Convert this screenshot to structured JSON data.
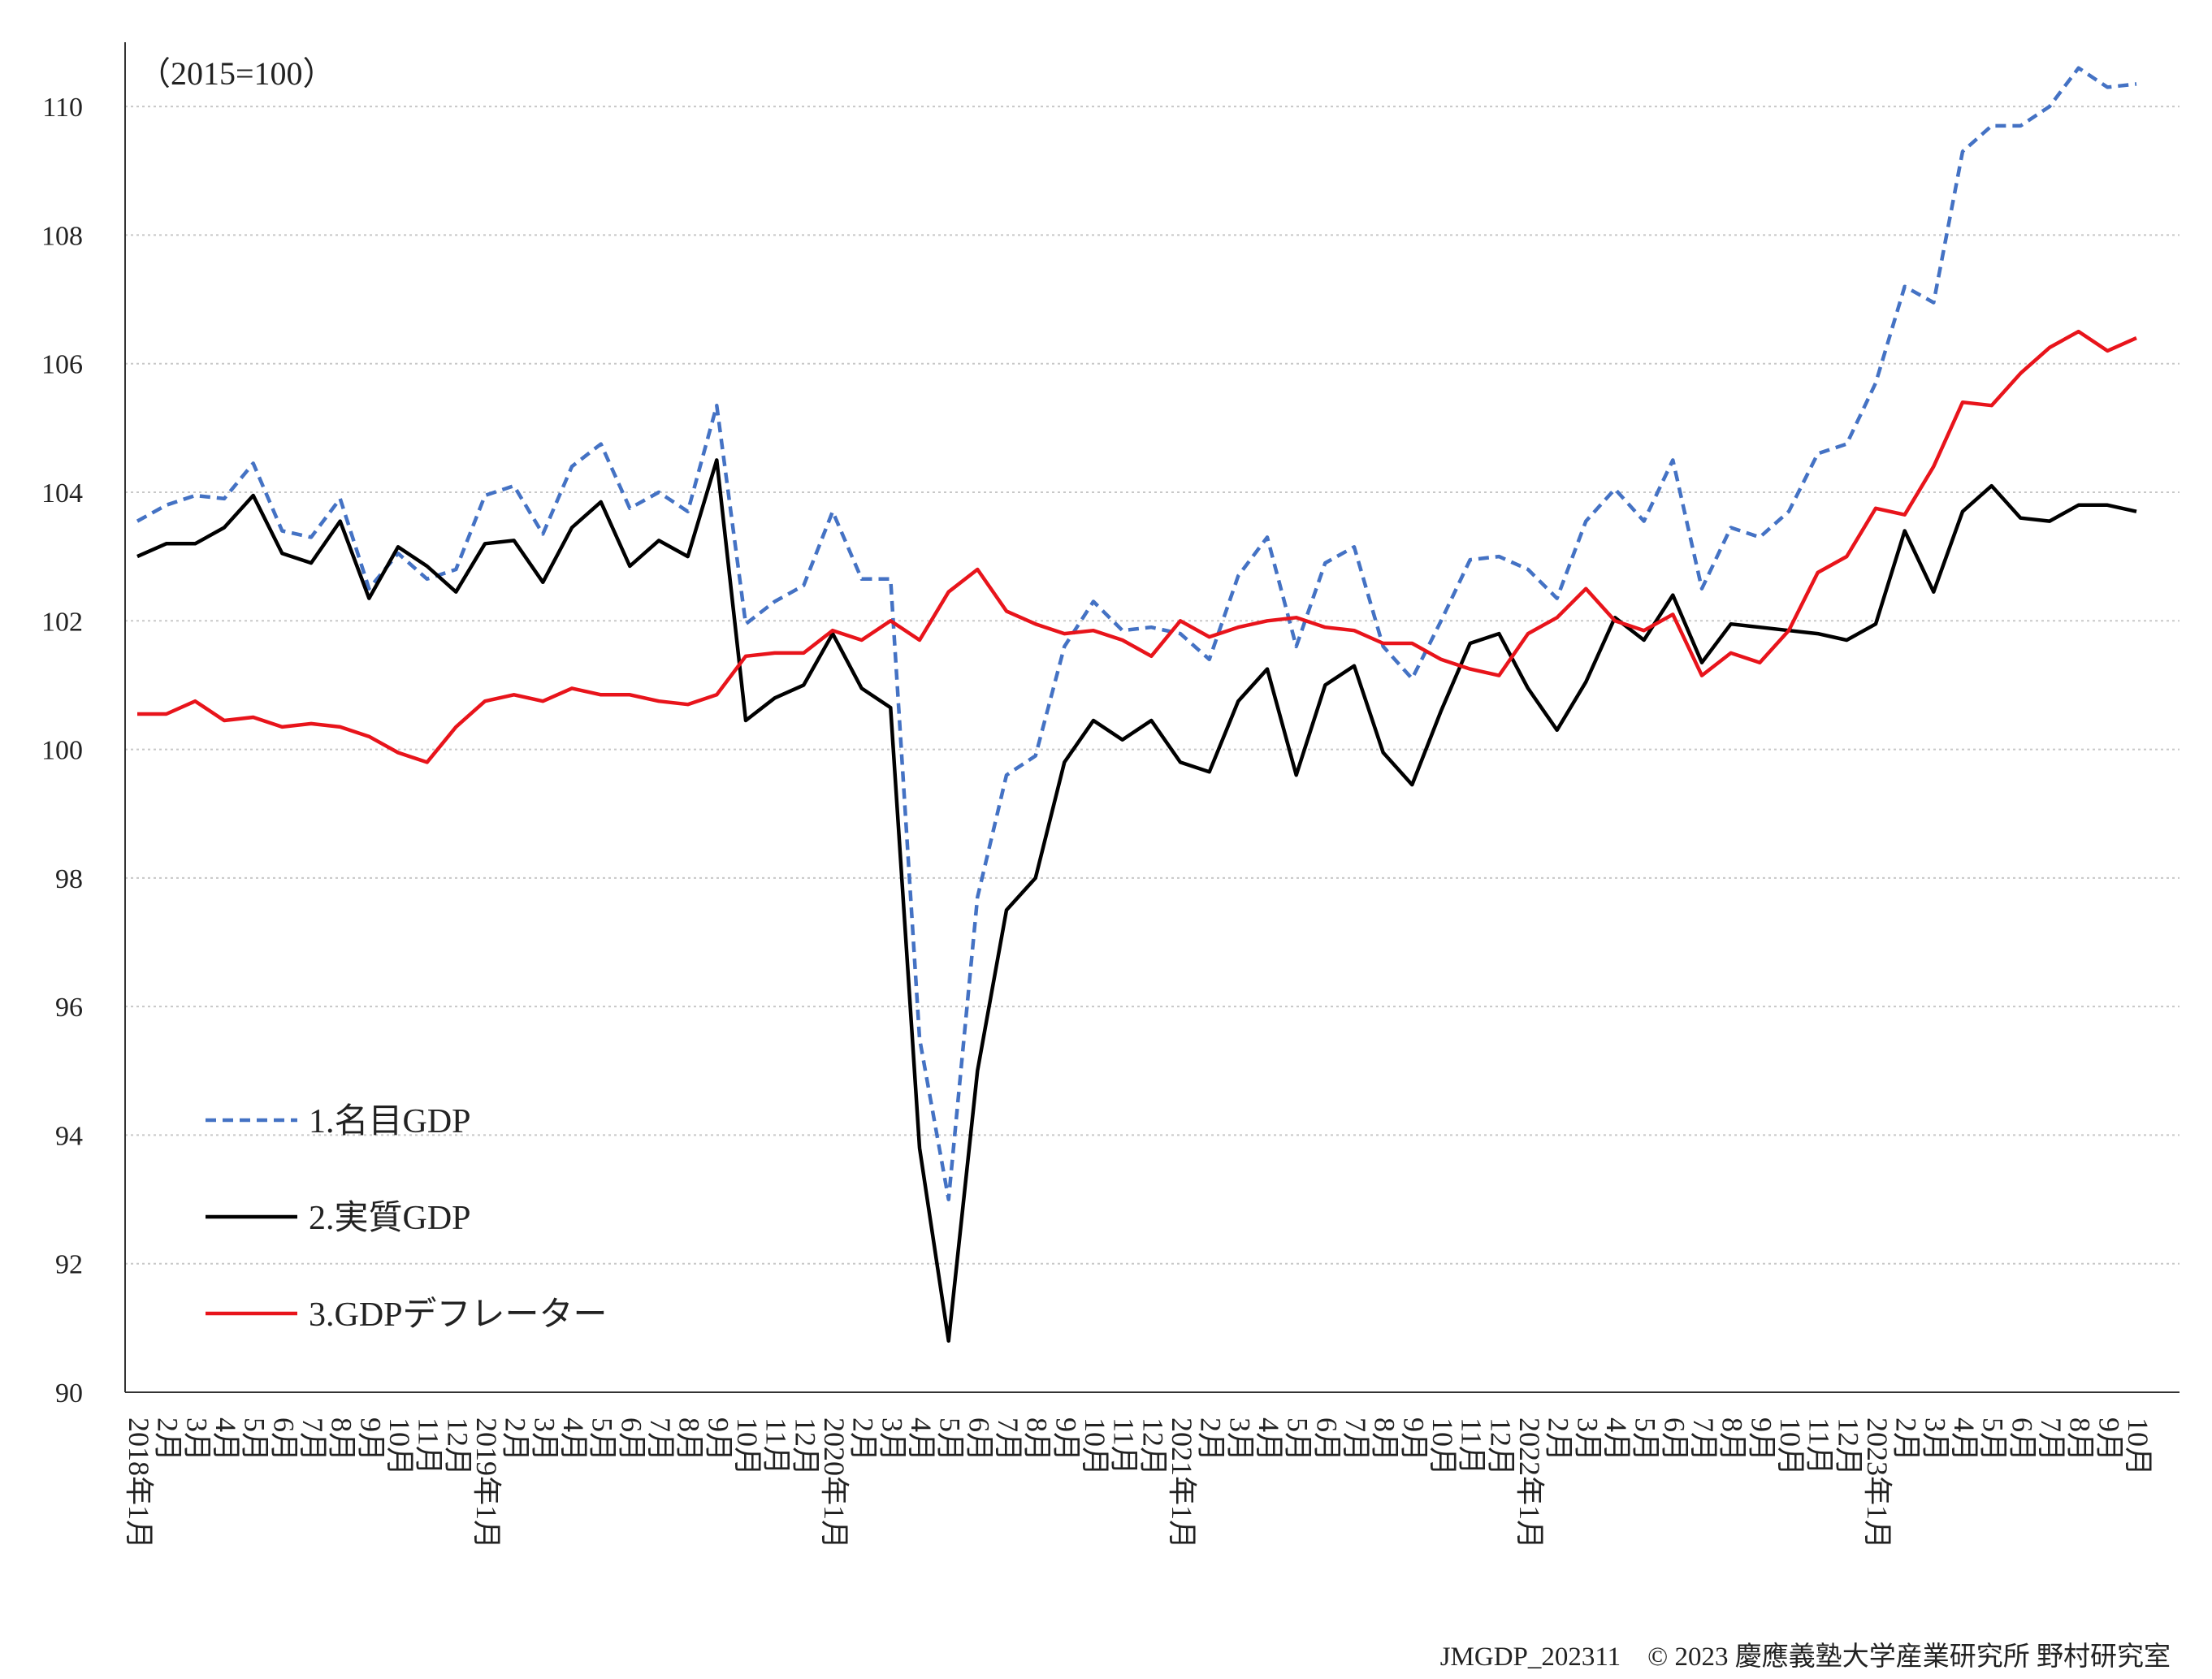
{
  "chart_data": {
    "type": "line",
    "note": "（2015=100）",
    "source": "JMGDP_202311　© 2023 慶應義塾大学産業研究所 野村研究室",
    "categories": [
      "2018年1月",
      "2月",
      "3月",
      "4月",
      "5月",
      "6月",
      "7月",
      "8月",
      "9月",
      "10月",
      "11月",
      "12月",
      "2019年1月",
      "2月",
      "3月",
      "4月",
      "5月",
      "6月",
      "7月",
      "8月",
      "9月",
      "10月",
      "11月",
      "12月",
      "2020年1月",
      "2月",
      "3月",
      "4月",
      "5月",
      "6月",
      "7月",
      "8月",
      "9月",
      "10月",
      "11月",
      "12月",
      "2021年1月",
      "2月",
      "3月",
      "4月",
      "5月",
      "6月",
      "7月",
      "8月",
      "9月",
      "10月",
      "11月",
      "12月",
      "2022年1月",
      "2月",
      "3月",
      "4月",
      "5月",
      "6月",
      "7月",
      "8月",
      "9月",
      "10月",
      "11月",
      "12月",
      "2023年1月",
      "2月",
      "3月",
      "4月",
      "5月",
      "6月",
      "7月",
      "8月",
      "9月",
      "10月"
    ],
    "series": [
      {
        "name": "1.名目GDP",
        "color": "#4472c4",
        "style": "dashed",
        "values": [
          103.55,
          103.8,
          103.95,
          103.9,
          104.45,
          103.4,
          103.3,
          103.9,
          102.5,
          103.05,
          102.65,
          102.8,
          103.95,
          104.1,
          103.35,
          104.4,
          104.75,
          103.75,
          104.0,
          103.7,
          105.35,
          101.95,
          102.3,
          102.55,
          103.7,
          102.65,
          102.65,
          95.5,
          93.0,
          97.7,
          99.6,
          99.9,
          101.6,
          102.3,
          101.85,
          101.9,
          101.8,
          101.4,
          102.7,
          103.3,
          101.6,
          102.9,
          103.15,
          101.6,
          101.1,
          102.0,
          102.95,
          103.0,
          102.8,
          102.35,
          103.55,
          104.05,
          103.55,
          104.5,
          102.5,
          103.45,
          103.3,
          103.7,
          104.6,
          104.75,
          105.7,
          107.2,
          106.95,
          109.3,
          109.7,
          109.7,
          110.0,
          110.6,
          110.3,
          110.35
        ]
      },
      {
        "name": "2.実質GDP",
        "color": "#000000",
        "style": "solid",
        "values": [
          103.0,
          103.2,
          103.2,
          103.45,
          103.95,
          103.05,
          102.9,
          103.55,
          102.35,
          103.15,
          102.85,
          102.45,
          103.2,
          103.25,
          102.6,
          103.45,
          103.85,
          102.85,
          103.25,
          103.0,
          104.5,
          100.45,
          100.8,
          101.0,
          101.8,
          100.95,
          100.65,
          93.8,
          90.8,
          95.0,
          97.5,
          98.0,
          99.8,
          100.45,
          100.15,
          100.45,
          99.8,
          99.65,
          100.75,
          101.25,
          99.6,
          101.0,
          101.3,
          99.95,
          99.45,
          100.6,
          101.65,
          101.8,
          100.95,
          100.3,
          101.05,
          102.05,
          101.7,
          102.4,
          101.35,
          101.95,
          101.9,
          101.85,
          101.8,
          101.7,
          101.95,
          103.4,
          102.45,
          103.7,
          104.1,
          103.6,
          103.55,
          103.8,
          103.8,
          103.7
        ]
      },
      {
        "name": "3.GDPデフレーター",
        "color": "#e8141b",
        "style": "solid",
        "values": [
          100.55,
          100.55,
          100.75,
          100.45,
          100.5,
          100.35,
          100.4,
          100.35,
          100.2,
          99.95,
          99.8,
          100.35,
          100.75,
          100.85,
          100.75,
          100.95,
          100.85,
          100.85,
          100.75,
          100.7,
          100.85,
          101.45,
          101.5,
          101.5,
          101.85,
          101.7,
          102.0,
          101.7,
          102.45,
          102.8,
          102.15,
          101.95,
          101.8,
          101.85,
          101.7,
          101.45,
          102.0,
          101.75,
          101.9,
          102.0,
          102.05,
          101.9,
          101.85,
          101.65,
          101.65,
          101.4,
          101.25,
          101.15,
          101.8,
          102.05,
          102.5,
          102.0,
          101.85,
          102.1,
          101.15,
          101.5,
          101.35,
          101.85,
          102.75,
          103.0,
          103.75,
          103.65,
          104.4,
          105.4,
          105.35,
          105.85,
          106.25,
          106.5,
          106.2,
          106.4
        ]
      }
    ],
    "ylim": [
      90,
      111
    ],
    "yticks": [
      90,
      92,
      94,
      96,
      98,
      100,
      102,
      104,
      106,
      108,
      110
    ],
    "grid": true,
    "legend": "lower left"
  }
}
